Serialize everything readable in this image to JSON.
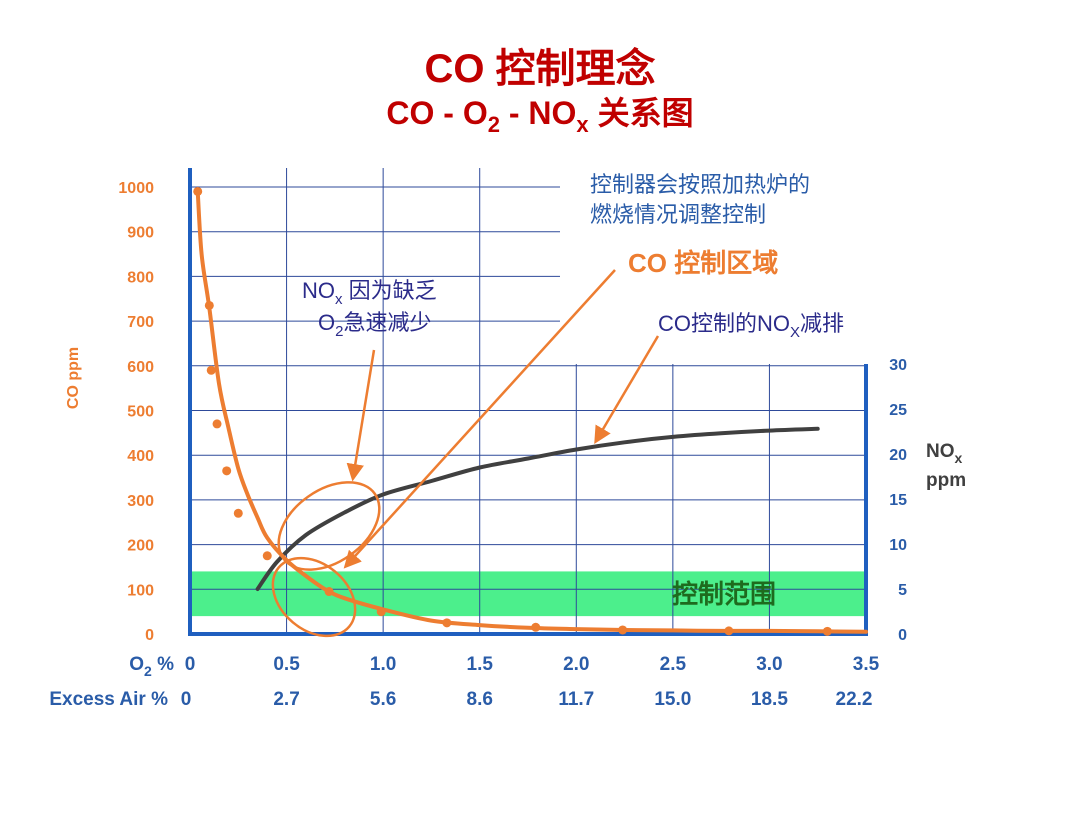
{
  "title": {
    "main": "CO 控制理念",
    "sub_prefix": "CO - O",
    "sub_o2_sub": "2",
    "sub_mid": " - NO",
    "sub_nox_sub": "x",
    "sub_suffix": " 关系图"
  },
  "annotations": {
    "controller_line1": "控制器会按照加热炉的",
    "controller_line2": "燃烧情况调整控制",
    "co_zone": "CO 控制区域",
    "nox_drop_line1_a": "NO",
    "nox_drop_line1_sub": "x",
    "nox_drop_line1_b": " 因为缺乏",
    "nox_drop_line2_a": "O",
    "nox_drop_line2_sub": "2",
    "nox_drop_line2_b": "急速减少",
    "nox_reduce_a": "CO控制的NO",
    "nox_reduce_sub": "X",
    "nox_reduce_b": "减排",
    "band_label": "控制范围"
  },
  "axes": {
    "left_label": "CO ppm",
    "right_label_a": "NO",
    "right_label_sub": "x",
    "right_label_b": "ppm",
    "o2_label_a": "O",
    "o2_label_sub": "2",
    "o2_label_b": " %",
    "excess_label": "Excess Air %"
  },
  "colors": {
    "co_curve": "#ed7d31",
    "nox_curve": "#404040",
    "band": "#4cef8c",
    "axis": "#1f5fbf",
    "grid": "#2e4a9a",
    "title": "#c00000"
  },
  "chart_data": {
    "type": "line",
    "x_axis": {
      "label": "O2 %",
      "range": [
        0,
        3.5
      ],
      "ticks": [
        0,
        0.5,
        1.0,
        1.5,
        2.0,
        2.5,
        3.0,
        3.5
      ],
      "tick_labels": [
        "0",
        "0.5",
        "1.0",
        "1.5",
        "2.0",
        "2.5",
        "3.0",
        "3.5"
      ]
    },
    "secondary_x_axis": {
      "label": "Excess Air %",
      "tick_labels": [
        "0",
        "2.7",
        "5.6",
        "8.6",
        "11.7",
        "15.0",
        "18.5",
        "22.2"
      ]
    },
    "y_axis_left": {
      "label": "CO ppm",
      "range": [
        0,
        1000
      ],
      "ticks": [
        0,
        100,
        200,
        300,
        400,
        500,
        600,
        700,
        800,
        900,
        1000
      ]
    },
    "y_axis_right": {
      "label": "NOx ppm",
      "range": [
        0,
        30
      ],
      "ticks": [
        0,
        5,
        10,
        15,
        20,
        25,
        30
      ]
    },
    "series": [
      {
        "axis": "left",
        "curve": [
          [
            0.04,
            990
          ],
          [
            0.06,
            850
          ],
          [
            0.1,
            730
          ],
          [
            0.15,
            560
          ],
          [
            0.2,
            460
          ],
          [
            0.25,
            370
          ],
          [
            0.3,
            310
          ],
          [
            0.35,
            260
          ],
          [
            0.4,
            215
          ],
          [
            0.5,
            165
          ],
          [
            0.6,
            130
          ],
          [
            0.7,
            100
          ],
          [
            0.8,
            80
          ],
          [
            1.0,
            55
          ],
          [
            1.25,
            30
          ],
          [
            1.5,
            20
          ],
          [
            1.75,
            14
          ],
          [
            2.0,
            11
          ],
          [
            2.25,
            9
          ],
          [
            2.5,
            8
          ],
          [
            2.75,
            7
          ],
          [
            3.0,
            7
          ],
          [
            3.25,
            6
          ],
          [
            3.5,
            5
          ]
        ],
        "markers": [
          [
            0.04,
            990
          ],
          [
            0.1,
            735
          ],
          [
            0.11,
            590
          ],
          [
            0.14,
            470
          ],
          [
            0.19,
            365
          ],
          [
            0.25,
            270
          ],
          [
            0.4,
            175
          ],
          [
            0.72,
            95
          ],
          [
            0.99,
            50
          ],
          [
            1.33,
            25
          ],
          [
            1.79,
            15
          ],
          [
            2.24,
            9
          ],
          [
            2.79,
            7
          ],
          [
            3.3,
            6
          ]
        ]
      },
      {
        "axis": "right",
        "curve": [
          [
            0.35,
            5
          ],
          [
            0.45,
            8
          ],
          [
            0.6,
            11
          ],
          [
            0.8,
            13.5
          ],
          [
            1.0,
            15.5
          ],
          [
            1.25,
            17
          ],
          [
            1.5,
            18.5
          ],
          [
            1.75,
            19.5
          ],
          [
            2.0,
            20.5
          ],
          [
            2.25,
            21.3
          ],
          [
            2.5,
            21.9
          ],
          [
            2.75,
            22.3
          ],
          [
            3.0,
            22.6
          ],
          [
            3.25,
            22.8
          ]
        ],
        "markers": []
      }
    ],
    "control_band": {
      "co_from": 40,
      "co_to": 140
    }
  }
}
